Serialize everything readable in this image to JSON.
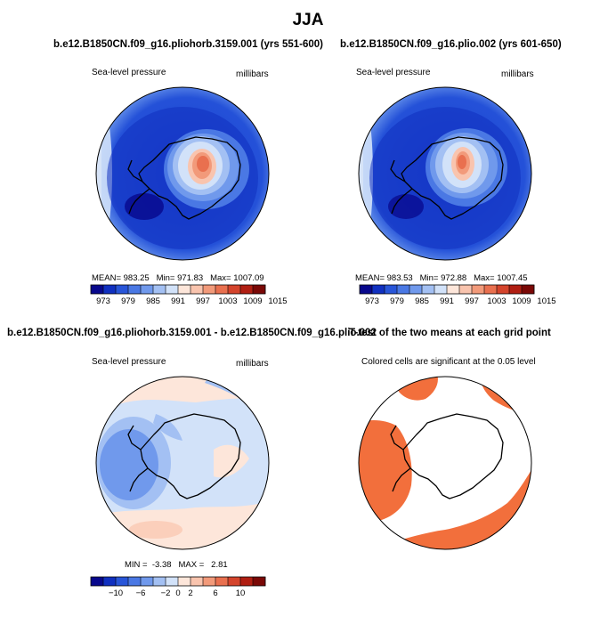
{
  "title": "JJA",
  "panels": [
    {
      "id": "tl",
      "title": "b.e12.B1850CN.f09_g16.pliohorb.3159.001 (yrs 551-600)",
      "left_label": "Sea-level pressure",
      "right_label": "millibars",
      "stats": {
        "mean_label": "MEAN=",
        "mean": "983.25",
        "min_label": "Min=",
        "min": "971.83",
        "max_label": "Max=",
        "max": "1007.09"
      },
      "colorbar": {
        "ticks": [
          "973",
          "979",
          "985",
          "991",
          "997",
          "1003",
          "1009",
          "1015"
        ],
        "colors": [
          "#08088c",
          "#1030c0",
          "#2855d8",
          "#4a78e4",
          "#7099ec",
          "#a3c0f3",
          "#d2e2f9",
          "#fde6da",
          "#f9c4ae",
          "#f29a7a",
          "#e9704f",
          "#d4442c",
          "#b01e12",
          "#7a0806"
        ]
      }
    },
    {
      "id": "tr",
      "title": "b.e12.B1850CN.f09_g16.plio.002 (yrs 601-650)",
      "left_label": "Sea-level pressure",
      "right_label": "millibars",
      "stats": {
        "mean_label": "MEAN=",
        "mean": "983.53",
        "min_label": "Min=",
        "min": "972.88",
        "max_label": "Max=",
        "max": "1007.45"
      },
      "colorbar": {
        "ticks": [
          "973",
          "979",
          "985",
          "991",
          "997",
          "1003",
          "1009",
          "1015"
        ],
        "colors": [
          "#08088c",
          "#1030c0",
          "#2855d8",
          "#4a78e4",
          "#7099ec",
          "#a3c0f3",
          "#d2e2f9",
          "#fde6da",
          "#f9c4ae",
          "#f29a7a",
          "#e9704f",
          "#d4442c",
          "#b01e12",
          "#7a0806"
        ]
      }
    },
    {
      "id": "bl",
      "title": "b.e12.B1850CN.f09_g16.pliohorb.3159.001 - b.e12.B1850CN.f09_g16.plio.002",
      "left_label": "Sea-level pressure",
      "right_label": "millibars",
      "stats": {
        "min_label": "MIN =",
        "min": "-3.38",
        "max_label": "MAX =",
        "max": "2.81"
      },
      "colorbar": {
        "ticks": [
          "−10",
          "−6",
          "−2",
          "0",
          "2",
          "6",
          "10"
        ],
        "colors": [
          "#08088c",
          "#1030c0",
          "#2855d8",
          "#4a78e4",
          "#7099ec",
          "#a3c0f3",
          "#d2e2f9",
          "#fde6da",
          "#f9c4ae",
          "#f29a7a",
          "#e9704f",
          "#d4442c",
          "#b01e12",
          "#7a0806"
        ]
      }
    },
    {
      "id": "br",
      "title": "T-test of the two means at each grid point",
      "caption": "Colored cells are significant at the 0.05 level",
      "significance_color": "#f26f3c"
    }
  ]
}
